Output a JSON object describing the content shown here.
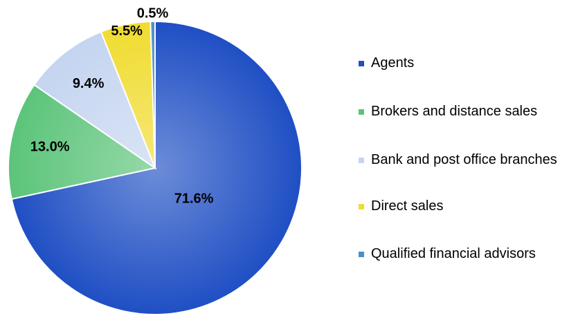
{
  "chart_data": {
    "type": "pie",
    "categories": [
      "Agents",
      "Brokers and distance sales",
      "Bank and post office branches",
      "Direct sales",
      "Qualified financial advisors"
    ],
    "values": [
      71.6,
      13.0,
      9.4,
      5.5,
      0.5
    ],
    "value_labels": [
      "71.6%",
      "13.0%",
      "9.4%",
      "5.5%",
      "0.5%"
    ],
    "colors": [
      "#1f4fc4",
      "#5cc47a",
      "#c5d5f0",
      "#f0dc30",
      "#4a90c8"
    ],
    "legend": "right"
  }
}
